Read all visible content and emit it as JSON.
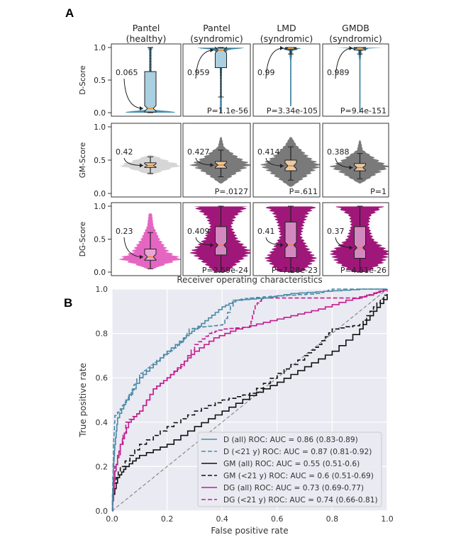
{
  "figure": {
    "panel_a_label": "A",
    "panel_b_label": "B"
  },
  "chart_data": [
    {
      "type": "violin-box-grid",
      "columns": [
        "Pantel\n(healthy)",
        "Pantel\n(syndromic)",
        "LMD\n(syndromic)",
        "GMDB\n(syndromic)"
      ],
      "rows": [
        {
          "ylabel": "D-Score",
          "ylim": [
            0,
            1
          ],
          "yticks": [
            "0.0",
            "0.5",
            "1.0"
          ],
          "colors": [
            "#4a8fb0",
            "#3a7f9f",
            "#3a7f9f",
            "#3a7f9f"
          ],
          "box_fill": [
            "#a9cfe0",
            "#a9cfe0",
            "#a9cfe0",
            "#a9cfe0"
          ],
          "panels": [
            {
              "median_label": "0.065",
              "median": 0.065,
              "q1": 0.01,
              "q3": 0.63,
              "whisker": [
                0.0,
                1.0
              ],
              "p": "",
              "density": [
                [
                  0,
                  1
                ],
                [
                  0.02,
                  0.6
                ],
                [
                  0.05,
                  0.05
                ],
                [
                  0.5,
                  0.04
                ],
                [
                  0.95,
                  0.04
                ],
                [
                  1,
                  0.08
                ]
              ]
            },
            {
              "median_label": "0.959",
              "median": 0.959,
              "q1": 0.69,
              "q3": 0.99,
              "whisker": [
                0.24,
                1.0
              ],
              "p": "P=1.1e-56",
              "density": [
                [
                  0,
                  0.03
                ],
                [
                  0.5,
                  0.03
                ],
                [
                  0.9,
                  0.05
                ],
                [
                  0.97,
                  0.3
                ],
                [
                  1,
                  1
                ]
              ]
            },
            {
              "median_label": "0.99",
              "median": 0.99,
              "q1": 0.97,
              "q3": 1.0,
              "whisker": [
                0.9,
                1.0
              ],
              "p": "P=3.34e-105",
              "density": [
                [
                  0.1,
                  0.02
                ],
                [
                  0.8,
                  0.02
                ],
                [
                  0.95,
                  0.06
                ],
                [
                  0.99,
                  0.4
                ],
                [
                  1,
                  1
                ]
              ]
            },
            {
              "median_label": "0.989",
              "median": 0.989,
              "q1": 0.96,
              "q3": 1.0,
              "whisker": [
                0.9,
                1.0
              ],
              "p": "P=9.4e-151",
              "density": [
                [
                  0,
                  0.02
                ],
                [
                  0.8,
                  0.02
                ],
                [
                  0.95,
                  0.06
                ],
                [
                  0.99,
                  0.4
                ],
                [
                  1,
                  1
                ]
              ]
            }
          ]
        },
        {
          "ylabel": "GM-Score",
          "ylim": [
            0,
            1
          ],
          "yticks": [
            "0.0",
            "0.5",
            "1.0"
          ],
          "colors": [
            "#d6d6d6",
            "#7a7a7a",
            "#7a7a7a",
            "#7a7a7a"
          ],
          "box_fill": [
            "#e8c9a8",
            "#e8c9a8",
            "#e8c9a8",
            "#e8c9a8"
          ],
          "panels": [
            {
              "median_label": "0.42",
              "median": 0.42,
              "q1": 0.39,
              "q3": 0.46,
              "whisker": [
                0.3,
                0.55
              ],
              "p": "",
              "density": [
                [
                  0.28,
                  0.05
                ],
                [
                  0.35,
                  0.5
                ],
                [
                  0.42,
                  1
                ],
                [
                  0.5,
                  0.5
                ],
                [
                  0.58,
                  0.05
                ]
              ]
            },
            {
              "median_label": "0.427",
              "median": 0.427,
              "q1": 0.38,
              "q3": 0.48,
              "whisker": [
                0.25,
                0.65
              ],
              "p": "P=.0127",
              "density": [
                [
                  0.15,
                  0.03
                ],
                [
                  0.3,
                  0.5
                ],
                [
                  0.43,
                  1
                ],
                [
                  0.55,
                  0.55
                ],
                [
                  0.7,
                  0.1
                ],
                [
                  0.85,
                  0.02
                ]
              ]
            },
            {
              "median_label": "0.414",
              "median": 0.414,
              "q1": 0.34,
              "q3": 0.5,
              "whisker": [
                0.2,
                0.7
              ],
              "p": "P=.611",
              "density": [
                [
                  0.1,
                  0.03
                ],
                [
                  0.28,
                  0.6
                ],
                [
                  0.42,
                  1
                ],
                [
                  0.55,
                  0.6
                ],
                [
                  0.72,
                  0.2
                ],
                [
                  0.85,
                  0.02
                ]
              ]
            },
            {
              "median_label": "0.388",
              "median": 0.388,
              "q1": 0.34,
              "q3": 0.45,
              "whisker": [
                0.22,
                0.6
              ],
              "p": "P=1",
              "density": [
                [
                  0.15,
                  0.03
                ],
                [
                  0.3,
                  0.6
                ],
                [
                  0.4,
                  1
                ],
                [
                  0.5,
                  0.6
                ],
                [
                  0.65,
                  0.1
                ],
                [
                  0.8,
                  0.02
                ]
              ]
            }
          ]
        },
        {
          "ylabel": "DG-Score",
          "ylim": [
            0,
            1
          ],
          "yticks": [
            "0.0",
            "0.5",
            "1.0"
          ],
          "colors": [
            "#e566c2",
            "#a0177a",
            "#a0177a",
            "#a0177a"
          ],
          "box_fill": [
            "#e8a6d6",
            "#d488c0",
            "#d488c0",
            "#d488c0"
          ],
          "panels": [
            {
              "median_label": "0.23",
              "median": 0.23,
              "q1": 0.18,
              "q3": 0.35,
              "whisker": [
                0.05,
                0.6
              ],
              "p": "",
              "density": [
                [
                  0.05,
                  0.1
                ],
                [
                  0.2,
                  1
                ],
                [
                  0.3,
                  0.6
                ],
                [
                  0.5,
                  0.3
                ],
                [
                  0.7,
                  0.1
                ],
                [
                  0.9,
                  0.05
                ]
              ]
            },
            {
              "median_label": "0.409",
              "median": 0.409,
              "q1": 0.26,
              "q3": 0.69,
              "whisker": [
                0.0,
                1.0
              ],
              "p": "P=2.59e-24",
              "density": [
                [
                  0,
                  0.2
                ],
                [
                  0.15,
                  0.6
                ],
                [
                  0.3,
                  1
                ],
                [
                  0.5,
                  0.55
                ],
                [
                  0.7,
                  0.35
                ],
                [
                  0.85,
                  0.5
                ],
                [
                  1,
                  0.9
                ]
              ]
            },
            {
              "median_label": "0.41",
              "median": 0.41,
              "q1": 0.22,
              "q3": 0.76,
              "whisker": [
                0.0,
                1.0
              ],
              "p": "P=7.28e-23",
              "density": [
                [
                  0,
                  0.4
                ],
                [
                  0.2,
                  0.85
                ],
                [
                  0.35,
                  0.6
                ],
                [
                  0.55,
                  0.35
                ],
                [
                  0.75,
                  0.45
                ],
                [
                  0.9,
                  0.6
                ],
                [
                  1,
                  0.85
                ]
              ]
            },
            {
              "median_label": "0.37",
              "median": 0.37,
              "q1": 0.21,
              "q3": 0.69,
              "whisker": [
                0.0,
                1.0
              ],
              "p": "P=4.51e-26",
              "density": [
                [
                  0,
                  0.25
                ],
                [
                  0.15,
                  0.8
                ],
                [
                  0.3,
                  1
                ],
                [
                  0.5,
                  0.45
                ],
                [
                  0.7,
                  0.3
                ],
                [
                  0.85,
                  0.35
                ],
                [
                  1,
                  0.8
                ]
              ]
            }
          ]
        }
      ]
    },
    {
      "type": "line",
      "title": "Receiver operating characteristics",
      "xlabel": "False positive rate",
      "ylabel": "True positive rate",
      "xlim": [
        0,
        1
      ],
      "ylim": [
        0,
        1
      ],
      "xticks": [
        "0.0",
        "0.2",
        "0.4",
        "0.6",
        "0.8",
        "1.0"
      ],
      "yticks": [
        "0.0",
        "0.2",
        "0.4",
        "0.6",
        "0.8",
        "1.0"
      ],
      "grid": true,
      "legend_position": "bottom-right",
      "series": [
        {
          "name": "D (all) ROC: AUC = 0.86 (0.83-0.89)",
          "color": "#4a8aa5",
          "dash": false,
          "x": [
            0,
            0.005,
            0.01,
            0.02,
            0.05,
            0.1,
            0.15,
            0.2,
            0.26,
            0.3,
            0.35,
            0.4,
            0.45,
            0.55,
            0.65,
            0.77,
            0.9,
            1
          ],
          "y": [
            0,
            0.2,
            0.3,
            0.42,
            0.5,
            0.6,
            0.66,
            0.72,
            0.78,
            0.82,
            0.87,
            0.92,
            0.95,
            0.96,
            0.98,
            0.99,
            1,
            1
          ]
        },
        {
          "name": "D (<21 y) ROC: AUC = 0.87 (0.81-0.92)",
          "color": "#4a8aa5",
          "dash": true,
          "x": [
            0,
            0.005,
            0.01,
            0.03,
            0.06,
            0.1,
            0.15,
            0.2,
            0.25,
            0.28,
            0.33,
            0.4,
            0.44,
            0.5,
            0.6,
            0.74,
            0.8,
            1
          ],
          "y": [
            0,
            0.3,
            0.43,
            0.46,
            0.52,
            0.62,
            0.67,
            0.71,
            0.76,
            0.82,
            0.83,
            0.84,
            0.95,
            0.96,
            0.97,
            0.98,
            1,
            1
          ]
        },
        {
          "name": "GM (all) ROC: AUC = 0.55 (0.51-0.6)",
          "color": "#111111",
          "dash": false,
          "x": [
            0,
            0.02,
            0.05,
            0.1,
            0.2,
            0.3,
            0.4,
            0.5,
            0.6,
            0.7,
            0.8,
            0.9,
            0.95,
            1
          ],
          "y": [
            0.05,
            0.15,
            0.2,
            0.25,
            0.3,
            0.38,
            0.45,
            0.52,
            0.58,
            0.65,
            0.72,
            0.82,
            0.9,
            0.97
          ]
        },
        {
          "name": "GM (<21 y) ROC: AUC = 0.6 (0.51-0.69)",
          "color": "#111111",
          "dash": true,
          "x": [
            0,
            0.03,
            0.1,
            0.2,
            0.3,
            0.4,
            0.5,
            0.6,
            0.7,
            0.75,
            0.8,
            0.9,
            0.95,
            1
          ],
          "y": [
            0.1,
            0.2,
            0.3,
            0.38,
            0.45,
            0.5,
            0.53,
            0.62,
            0.7,
            0.75,
            0.82,
            0.84,
            0.92,
            0.99
          ]
        },
        {
          "name": "DG (all) ROC: AUC = 0.73 (0.69-0.77)",
          "color": "#c21c8e",
          "dash": false,
          "x": [
            0,
            0.01,
            0.03,
            0.06,
            0.1,
            0.15,
            0.2,
            0.25,
            0.3,
            0.37,
            0.45,
            0.55,
            0.65,
            0.75,
            0.85,
            0.95,
            1
          ],
          "y": [
            0,
            0.18,
            0.3,
            0.4,
            0.45,
            0.55,
            0.6,
            0.66,
            0.72,
            0.78,
            0.82,
            0.85,
            0.88,
            0.91,
            0.95,
            0.98,
            1
          ]
        },
        {
          "name": "DG (<21 y) ROC: AUC = 0.74 (0.66-0.81)",
          "color": "#c21c8e",
          "dash": true,
          "x": [
            0,
            0.01,
            0.05,
            0.1,
            0.15,
            0.2,
            0.25,
            0.3,
            0.35,
            0.4,
            0.5,
            0.52,
            0.55,
            0.9,
            0.97,
            1
          ],
          "y": [
            0,
            0.2,
            0.4,
            0.45,
            0.55,
            0.6,
            0.65,
            0.75,
            0.8,
            0.82,
            0.83,
            0.93,
            0.96,
            0.96,
            0.99,
            1
          ]
        },
        {
          "name": "",
          "color": "#8a8a8a",
          "dash": true,
          "x": [
            0,
            1
          ],
          "y": [
            0,
            1
          ]
        }
      ]
    }
  ]
}
